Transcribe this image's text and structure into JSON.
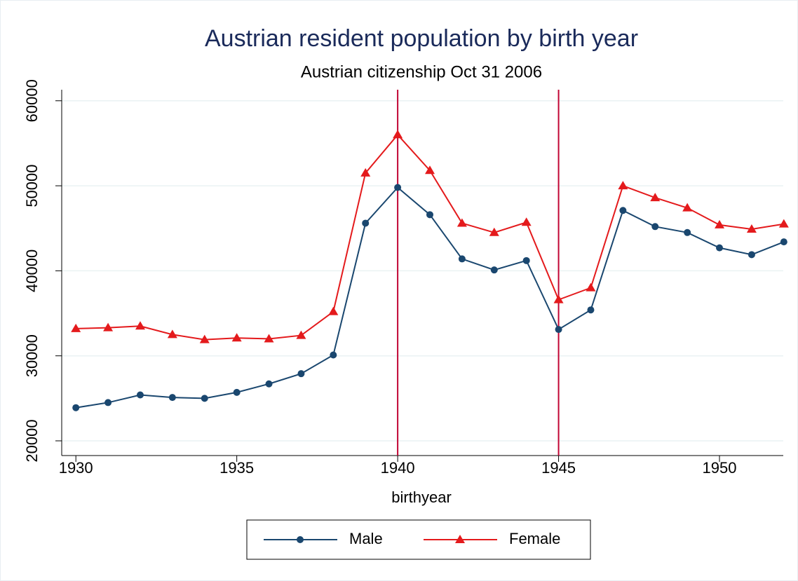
{
  "chart_data": {
    "type": "line",
    "title": "Austrian resident population by birth year",
    "subtitle": "Austrian citizenship Oct 31 2006",
    "x_label": "birthyear",
    "x": [
      1930,
      1931,
      1932,
      1933,
      1934,
      1935,
      1936,
      1937,
      1938,
      1939,
      1940,
      1941,
      1942,
      1943,
      1944,
      1945,
      1946,
      1947,
      1948,
      1949,
      1950,
      1951,
      1952
    ],
    "series": [
      {
        "name": "Male",
        "color": "#1a476f",
        "marker": "circle",
        "values": [
          23900,
          24500,
          25400,
          25100,
          25000,
          25700,
          26700,
          27900,
          30100,
          45600,
          49800,
          46600,
          41400,
          40100,
          41200,
          33100,
          35400,
          47100,
          45200,
          44500,
          42700,
          41900,
          43400
        ]
      },
      {
        "name": "Female",
        "color": "#e41a1c",
        "marker": "triangle",
        "values": [
          33200,
          33300,
          33500,
          32500,
          31900,
          32100,
          32000,
          32400,
          35200,
          51500,
          56000,
          51800,
          45600,
          44500,
          45700,
          36600,
          38000,
          50000,
          48600,
          47400,
          45400,
          44900,
          45500
        ]
      }
    ],
    "xlines": [
      1940,
      1945
    ],
    "xline_color": "#c10534",
    "xlim": [
      1929.56,
      1952.2
    ],
    "ylim": [
      18270,
      61300
    ],
    "xticks": [
      1930,
      1935,
      1940,
      1945,
      1950
    ],
    "yticks": [
      20000,
      30000,
      40000,
      50000,
      60000
    ],
    "grid": true,
    "legend": "bottom"
  }
}
